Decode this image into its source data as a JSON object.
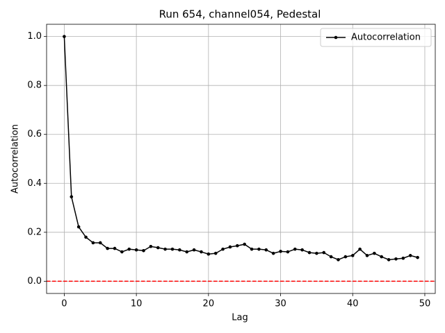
{
  "chart_data": {
    "type": "line",
    "title": "Run 654, channel054, Pedestal",
    "xlabel": "Lag",
    "ylabel": "Autocorrelation",
    "x": [
      0,
      1,
      2,
      3,
      4,
      5,
      6,
      7,
      8,
      9,
      10,
      11,
      12,
      13,
      14,
      15,
      16,
      17,
      18,
      19,
      20,
      21,
      22,
      23,
      24,
      25,
      26,
      27,
      28,
      29,
      30,
      31,
      32,
      33,
      34,
      35,
      36,
      37,
      38,
      39,
      40,
      41,
      42,
      43,
      44,
      45,
      46,
      47,
      48,
      49
    ],
    "series": [
      {
        "name": "Autocorrelation",
        "color": "#000000",
        "values": [
          1.0,
          0.345,
          0.222,
          0.18,
          0.157,
          0.157,
          0.134,
          0.134,
          0.12,
          0.131,
          0.128,
          0.125,
          0.142,
          0.137,
          0.131,
          0.131,
          0.128,
          0.12,
          0.128,
          0.12,
          0.111,
          0.114,
          0.131,
          0.14,
          0.145,
          0.151,
          0.131,
          0.131,
          0.128,
          0.114,
          0.122,
          0.12,
          0.131,
          0.128,
          0.117,
          0.114,
          0.117,
          0.1,
          0.088,
          0.1,
          0.105,
          0.131,
          0.105,
          0.114,
          0.1,
          0.088,
          0.091,
          0.094,
          0.105,
          0.097
        ]
      }
    ],
    "hline": {
      "value": 0,
      "color": "#ff0000"
    },
    "xlim": [
      -2.45,
      51.45
    ],
    "ylim": [
      -0.05,
      1.05
    ],
    "xticks": [
      0,
      10,
      20,
      30,
      40,
      50
    ],
    "yticks": [
      {
        "value": 0,
        "label": "0.0"
      },
      0.2,
      0.4,
      0.6,
      0.8,
      {
        "value": 1,
        "label": "1.0"
      }
    ],
    "grid": true,
    "legend": "upper right"
  }
}
